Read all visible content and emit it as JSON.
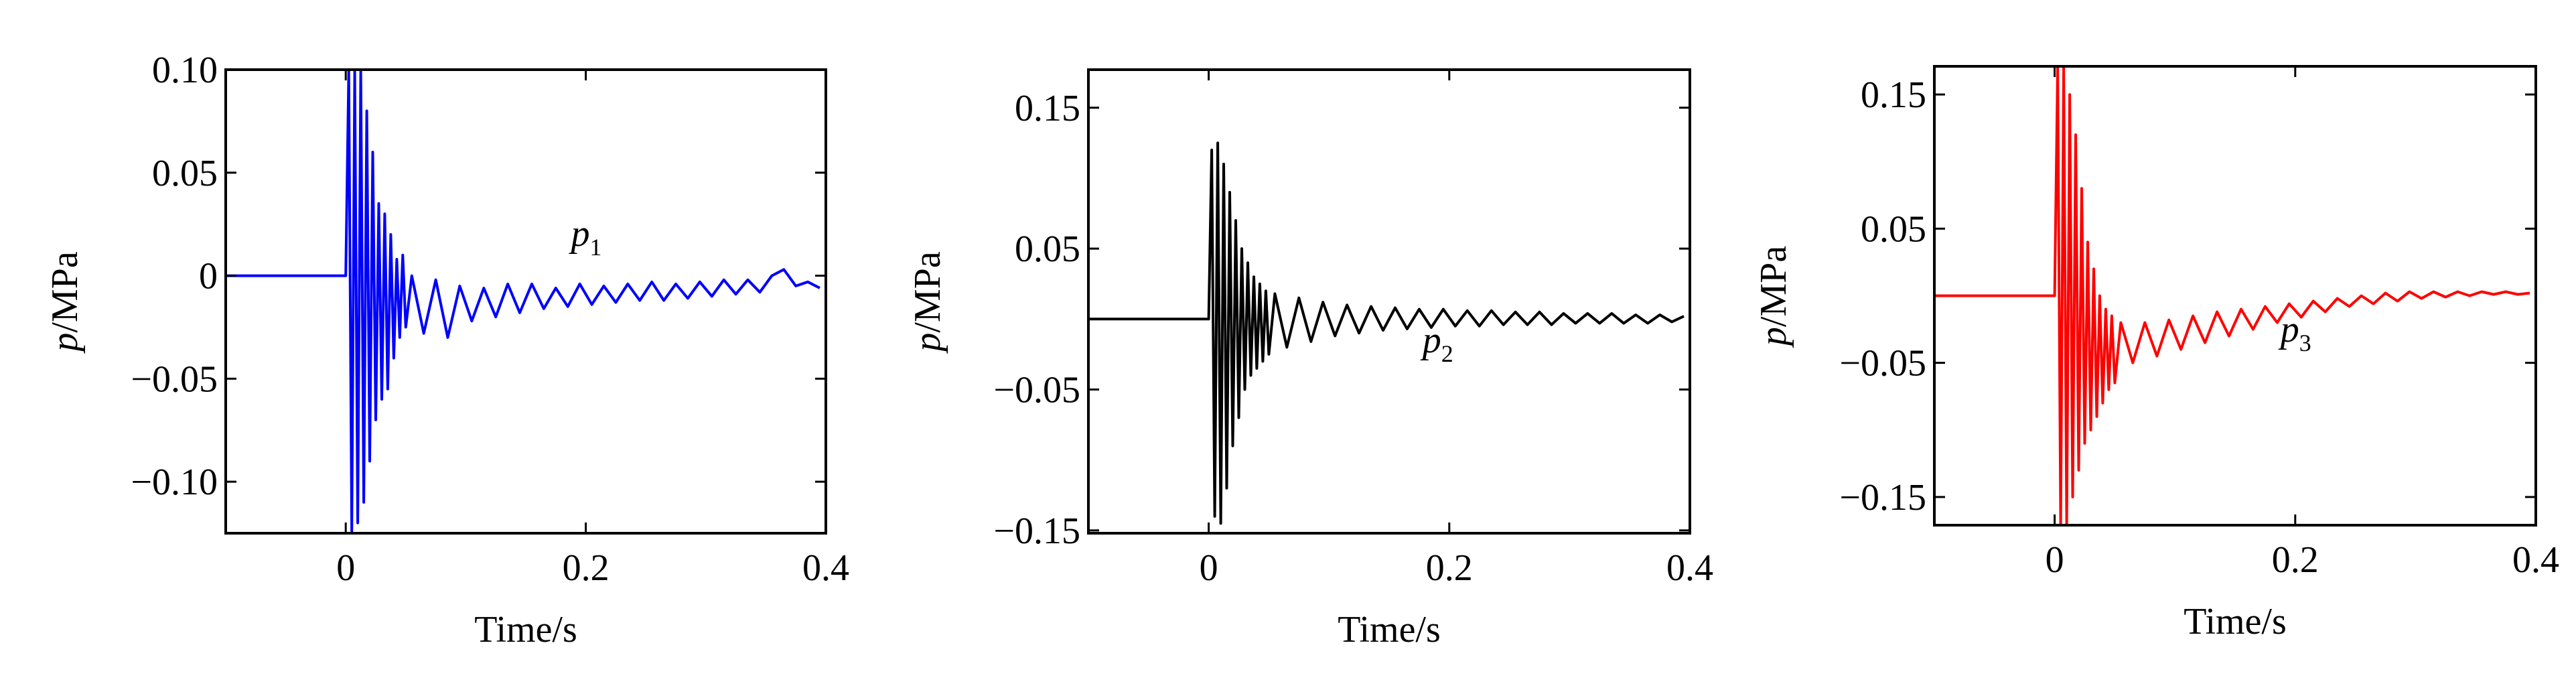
{
  "chart_data": [
    {
      "type": "line",
      "color": "#0000ff",
      "x": [
        -0.1,
        0,
        0.0025,
        0.005,
        0.0075,
        0.01,
        0.0125,
        0.015,
        0.0175,
        0.02,
        0.0225,
        0.025,
        0.0275,
        0.03,
        0.0325,
        0.035,
        0.0375,
        0.04,
        0.0425,
        0.045,
        0.0475,
        0.05,
        0.055,
        0.065,
        0.075,
        0.085,
        0.095,
        0.105,
        0.115,
        0.125,
        0.135,
        0.145,
        0.155,
        0.165,
        0.175,
        0.185,
        0.195,
        0.205,
        0.215,
        0.225,
        0.235,
        0.245,
        0.255,
        0.265,
        0.275,
        0.285,
        0.295,
        0.305,
        0.315,
        0.325,
        0.335,
        0.345,
        0.355,
        0.365,
        0.375,
        0.385,
        0.395
      ],
      "values": [
        0,
        0,
        0.1,
        -0.124,
        0.1,
        -0.12,
        0.1,
        -0.11,
        0.08,
        -0.09,
        0.06,
        -0.07,
        0.035,
        -0.06,
        0.03,
        -0.055,
        0.02,
        -0.04,
        0.008,
        -0.03,
        0.01,
        -0.025,
        0.0,
        -0.028,
        -0.002,
        -0.03,
        -0.005,
        -0.022,
        -0.006,
        -0.02,
        -0.004,
        -0.018,
        -0.004,
        -0.016,
        -0.006,
        -0.015,
        -0.004,
        -0.014,
        -0.005,
        -0.013,
        -0.004,
        -0.012,
        -0.003,
        -0.012,
        -0.004,
        -0.011,
        -0.003,
        -0.01,
        -0.002,
        -0.009,
        -0.002,
        -0.008,
        0.0,
        0.003,
        -0.005,
        -0.003,
        -0.006
      ],
      "xlim": [
        -0.1,
        0.4
      ],
      "xticks": [
        0,
        0.2,
        0.4
      ],
      "ylim": [
        -0.125,
        0.1
      ],
      "yticks": [
        {
          "value": 0.1,
          "label": "0.10"
        },
        {
          "value": 0.05,
          "label": "0.05"
        },
        0,
        {
          "value": -0.05,
          "label": "−0.05"
        },
        {
          "value": -0.1,
          "label": "−0.10"
        }
      ],
      "x_label": "Time/s",
      "y_label_symbol": "p",
      "y_label_unit": "/MPa",
      "annotation": {
        "symbol": "p",
        "subscript": "1"
      }
    },
    {
      "type": "line",
      "color": "#000000",
      "x": [
        -0.1,
        0,
        0.0025,
        0.005,
        0.0075,
        0.01,
        0.0125,
        0.015,
        0.0175,
        0.02,
        0.0225,
        0.025,
        0.0275,
        0.03,
        0.0325,
        0.035,
        0.0375,
        0.04,
        0.0425,
        0.045,
        0.0475,
        0.05,
        0.055,
        0.065,
        0.075,
        0.085,
        0.095,
        0.105,
        0.115,
        0.125,
        0.135,
        0.145,
        0.155,
        0.165,
        0.175,
        0.185,
        0.195,
        0.205,
        0.215,
        0.225,
        0.235,
        0.245,
        0.255,
        0.265,
        0.275,
        0.285,
        0.295,
        0.305,
        0.315,
        0.325,
        0.335,
        0.345,
        0.355,
        0.365,
        0.375,
        0.385,
        0.395
      ],
      "values": [
        0,
        0,
        0.12,
        -0.14,
        0.125,
        -0.145,
        0.11,
        -0.12,
        0.09,
        -0.09,
        0.07,
        -0.07,
        0.05,
        -0.05,
        0.04,
        -0.04,
        0.03,
        -0.035,
        0.025,
        -0.03,
        0.02,
        -0.025,
        0.018,
        -0.02,
        0.015,
        -0.016,
        0.012,
        -0.012,
        0.01,
        -0.01,
        0.009,
        -0.008,
        0.008,
        -0.007,
        0.007,
        -0.006,
        0.007,
        -0.005,
        0.006,
        -0.005,
        0.006,
        -0.004,
        0.005,
        -0.004,
        0.005,
        -0.004,
        0.004,
        -0.003,
        0.004,
        -0.003,
        0.004,
        -0.003,
        0.003,
        -0.003,
        0.003,
        -0.002,
        0.002
      ],
      "xlim": [
        -0.1,
        0.4
      ],
      "xticks": [
        0,
        0.2,
        0.4
      ],
      "ylim": [
        -0.152,
        0.177
      ],
      "yticks": [
        0.15,
        0.05,
        {
          "value": -0.05,
          "label": "−0.05"
        },
        {
          "value": -0.15,
          "label": "−0.15"
        }
      ],
      "x_label": "Time/s",
      "y_label_symbol": "p",
      "y_label_unit": "/MPa",
      "annotation": {
        "symbol": "p",
        "subscript": "2"
      }
    },
    {
      "type": "line",
      "color": "#ff0000",
      "x": [
        -0.1,
        0,
        0.0025,
        0.005,
        0.0075,
        0.01,
        0.0125,
        0.015,
        0.0175,
        0.02,
        0.0225,
        0.025,
        0.0275,
        0.03,
        0.0325,
        0.035,
        0.0375,
        0.04,
        0.0425,
        0.045,
        0.0475,
        0.05,
        0.055,
        0.065,
        0.075,
        0.085,
        0.095,
        0.105,
        0.115,
        0.125,
        0.135,
        0.145,
        0.155,
        0.165,
        0.175,
        0.185,
        0.195,
        0.205,
        0.215,
        0.225,
        0.235,
        0.245,
        0.255,
        0.265,
        0.275,
        0.285,
        0.295,
        0.305,
        0.315,
        0.325,
        0.335,
        0.345,
        0.355,
        0.365,
        0.375,
        0.385,
        0.395
      ],
      "values": [
        0,
        0,
        0.17,
        -0.17,
        0.17,
        -0.17,
        0.15,
        -0.15,
        0.12,
        -0.13,
        0.08,
        -0.11,
        0.04,
        -0.1,
        0.02,
        -0.09,
        0.0,
        -0.08,
        -0.01,
        -0.07,
        -0.015,
        -0.065,
        -0.02,
        -0.05,
        -0.02,
        -0.045,
        -0.018,
        -0.04,
        -0.015,
        -0.035,
        -0.012,
        -0.03,
        -0.01,
        -0.025,
        -0.008,
        -0.02,
        -0.006,
        -0.016,
        -0.004,
        -0.012,
        -0.002,
        -0.008,
        0.0,
        -0.006,
        0.002,
        -0.004,
        0.003,
        -0.002,
        0.003,
        -0.001,
        0.003,
        0.0,
        0.003,
        0.001,
        0.003,
        0.001,
        0.002
      ],
      "xlim": [
        -0.1,
        0.4
      ],
      "xticks": [
        0,
        0.2,
        0.4
      ],
      "ylim": [
        -0.171,
        0.171
      ],
      "yticks": [
        0.15,
        0.05,
        {
          "value": -0.05,
          "label": "−0.05"
        },
        {
          "value": -0.15,
          "label": "−0.15"
        }
      ],
      "x_label": "Time/s",
      "y_label_symbol": "p",
      "y_label_unit": "/MPa",
      "annotation": {
        "symbol": "p",
        "subscript": "3"
      }
    }
  ]
}
